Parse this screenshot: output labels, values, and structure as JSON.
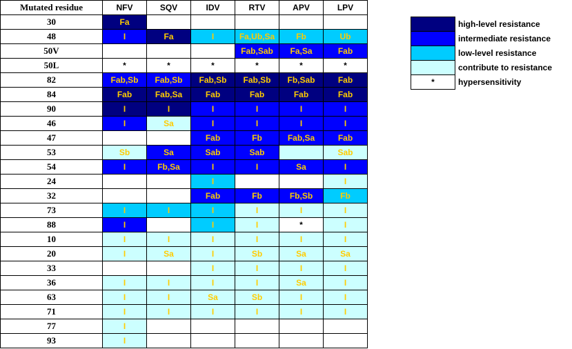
{
  "colors": {
    "H": "#000080",
    "I": "#0000ff",
    "L": "#00ccff",
    "C": "#ccffff",
    "W": "#ffffff",
    "text_on_color": "#ffcc00",
    "text_hyper": "#000000"
  },
  "header": {
    "residue_label": "Mutated residue",
    "drugs": [
      "NFV",
      "SQV",
      "IDV",
      "RTV",
      "APV",
      "LPV"
    ]
  },
  "rows": [
    {
      "residue": "30",
      "cells": [
        [
          "H",
          "Fa"
        ],
        [
          "W",
          ""
        ],
        [
          "W",
          ""
        ],
        [
          "W",
          ""
        ],
        [
          "W",
          ""
        ],
        [
          "W",
          ""
        ]
      ]
    },
    {
      "residue": "48",
      "cells": [
        [
          "I",
          "I"
        ],
        [
          "H",
          "Fa"
        ],
        [
          "L",
          "I"
        ],
        [
          "L",
          "Fa,Ub,Sa"
        ],
        [
          "L",
          "Fb"
        ],
        [
          "L",
          "Ub"
        ]
      ]
    },
    {
      "residue": "50V",
      "cells": [
        [
          "W",
          ""
        ],
        [
          "W",
          ""
        ],
        [
          "W",
          ""
        ],
        [
          "I",
          "Fab,Sab"
        ],
        [
          "I",
          "Fa,Sa"
        ],
        [
          "I",
          "Fab"
        ]
      ]
    },
    {
      "residue": "50L",
      "cells": [
        [
          "W",
          "*"
        ],
        [
          "W",
          "*"
        ],
        [
          "W",
          "*"
        ],
        [
          "W",
          "*"
        ],
        [
          "W",
          "*"
        ],
        [
          "W",
          "*"
        ]
      ]
    },
    {
      "residue": "82",
      "cells": [
        [
          "I",
          "Fab,Sb"
        ],
        [
          "I",
          "Fab,Sb"
        ],
        [
          "H",
          "Fab,Sb"
        ],
        [
          "H",
          "Fab,Sb"
        ],
        [
          "H",
          "Fb,Sab"
        ],
        [
          "H",
          "Fab"
        ]
      ]
    },
    {
      "residue": "84",
      "cells": [
        [
          "H",
          "Fab"
        ],
        [
          "H",
          "Fab,Sa"
        ],
        [
          "H",
          "Fab"
        ],
        [
          "H",
          "Fab"
        ],
        [
          "H",
          "Fab"
        ],
        [
          "H",
          "Fab"
        ]
      ]
    },
    {
      "residue": "90",
      "cells": [
        [
          "H",
          "I"
        ],
        [
          "H",
          "I"
        ],
        [
          "I",
          "I"
        ],
        [
          "I",
          "I"
        ],
        [
          "I",
          "I"
        ],
        [
          "I",
          "I"
        ]
      ]
    },
    {
      "residue": "46",
      "cells": [
        [
          "I",
          "I"
        ],
        [
          "C",
          "Sa"
        ],
        [
          "I",
          "I"
        ],
        [
          "I",
          "I"
        ],
        [
          "I",
          "I"
        ],
        [
          "I",
          "I"
        ]
      ]
    },
    {
      "residue": "47",
      "cells": [
        [
          "W",
          ""
        ],
        [
          "W",
          ""
        ],
        [
          "I",
          "Fab"
        ],
        [
          "I",
          "Fb"
        ],
        [
          "I",
          "Fab,Sa"
        ],
        [
          "I",
          "Fab"
        ]
      ]
    },
    {
      "residue": "53",
      "cells": [
        [
          "C",
          "Sb"
        ],
        [
          "I",
          "Sa"
        ],
        [
          "I",
          "Sab"
        ],
        [
          "I",
          "Sab"
        ],
        [
          "C",
          ""
        ],
        [
          "C",
          "Sab"
        ]
      ]
    },
    {
      "residue": "54",
      "cells": [
        [
          "I",
          "I"
        ],
        [
          "I",
          "Fb,Sa"
        ],
        [
          "I",
          "I"
        ],
        [
          "I",
          "I"
        ],
        [
          "I",
          "Sa"
        ],
        [
          "I",
          "I"
        ]
      ]
    },
    {
      "residue": "24",
      "cells": [
        [
          "W",
          ""
        ],
        [
          "W",
          ""
        ],
        [
          "L",
          "I"
        ],
        [
          "W",
          ""
        ],
        [
          "W",
          ""
        ],
        [
          "C",
          "I"
        ]
      ]
    },
    {
      "residue": "32",
      "cells": [
        [
          "W",
          ""
        ],
        [
          "W",
          ""
        ],
        [
          "I",
          "Fab"
        ],
        [
          "I",
          "Fb"
        ],
        [
          "I",
          "Fb,Sb"
        ],
        [
          "L",
          "Fb"
        ]
      ]
    },
    {
      "residue": "73",
      "cells": [
        [
          "L",
          "I"
        ],
        [
          "L",
          "I"
        ],
        [
          "L",
          "I"
        ],
        [
          "C",
          "I"
        ],
        [
          "C",
          "I"
        ],
        [
          "C",
          "I"
        ]
      ]
    },
    {
      "residue": "88",
      "cells": [
        [
          "I",
          "I"
        ],
        [
          "W",
          ""
        ],
        [
          "L",
          "I"
        ],
        [
          "C",
          "I"
        ],
        [
          "W",
          "*"
        ],
        [
          "C",
          "I"
        ]
      ]
    },
    {
      "residue": "10",
      "cells": [
        [
          "C",
          "I"
        ],
        [
          "C",
          "I"
        ],
        [
          "C",
          "I"
        ],
        [
          "C",
          "I"
        ],
        [
          "C",
          "I"
        ],
        [
          "C",
          "I"
        ]
      ]
    },
    {
      "residue": "20",
      "cells": [
        [
          "C",
          "I"
        ],
        [
          "C",
          "Sa"
        ],
        [
          "C",
          "I"
        ],
        [
          "C",
          "Sb"
        ],
        [
          "C",
          "Sa"
        ],
        [
          "C",
          "Sa"
        ]
      ]
    },
    {
      "residue": "33",
      "cells": [
        [
          "W",
          ""
        ],
        [
          "W",
          ""
        ],
        [
          "C",
          "I"
        ],
        [
          "C",
          "I"
        ],
        [
          "C",
          "I"
        ],
        [
          "C",
          "I"
        ]
      ]
    },
    {
      "residue": "36",
      "cells": [
        [
          "C",
          "I"
        ],
        [
          "C",
          "I"
        ],
        [
          "C",
          "I"
        ],
        [
          "C",
          "I"
        ],
        [
          "C",
          "Sa"
        ],
        [
          "C",
          "I"
        ]
      ]
    },
    {
      "residue": "63",
      "cells": [
        [
          "C",
          "I"
        ],
        [
          "C",
          "I"
        ],
        [
          "C",
          "Sa"
        ],
        [
          "C",
          "Sb"
        ],
        [
          "C",
          "I"
        ],
        [
          "C",
          "I"
        ]
      ]
    },
    {
      "residue": "71",
      "cells": [
        [
          "C",
          "I"
        ],
        [
          "C",
          "I"
        ],
        [
          "C",
          "I"
        ],
        [
          "C",
          "I"
        ],
        [
          "C",
          "I"
        ],
        [
          "C",
          "I"
        ]
      ]
    },
    {
      "residue": "77",
      "cells": [
        [
          "C",
          "I"
        ],
        [
          "W",
          ""
        ],
        [
          "W",
          ""
        ],
        [
          "W",
          ""
        ],
        [
          "W",
          ""
        ],
        [
          "W",
          ""
        ]
      ]
    },
    {
      "residue": "93",
      "cells": [
        [
          "C",
          "I"
        ],
        [
          "W",
          ""
        ],
        [
          "W",
          ""
        ],
        [
          "W",
          ""
        ],
        [
          "W",
          ""
        ],
        [
          "W",
          ""
        ]
      ]
    }
  ],
  "legend": [
    {
      "level": "H",
      "mark": "",
      "label": "high-level resistance"
    },
    {
      "level": "I",
      "mark": "",
      "label": "intermediate resistance"
    },
    {
      "level": "L",
      "mark": "",
      "label": "low-level resistance"
    },
    {
      "level": "C",
      "mark": "",
      "label": "contribute to resistance"
    },
    {
      "level": "W",
      "mark": "*",
      "label": "hypersensitivity"
    }
  ]
}
